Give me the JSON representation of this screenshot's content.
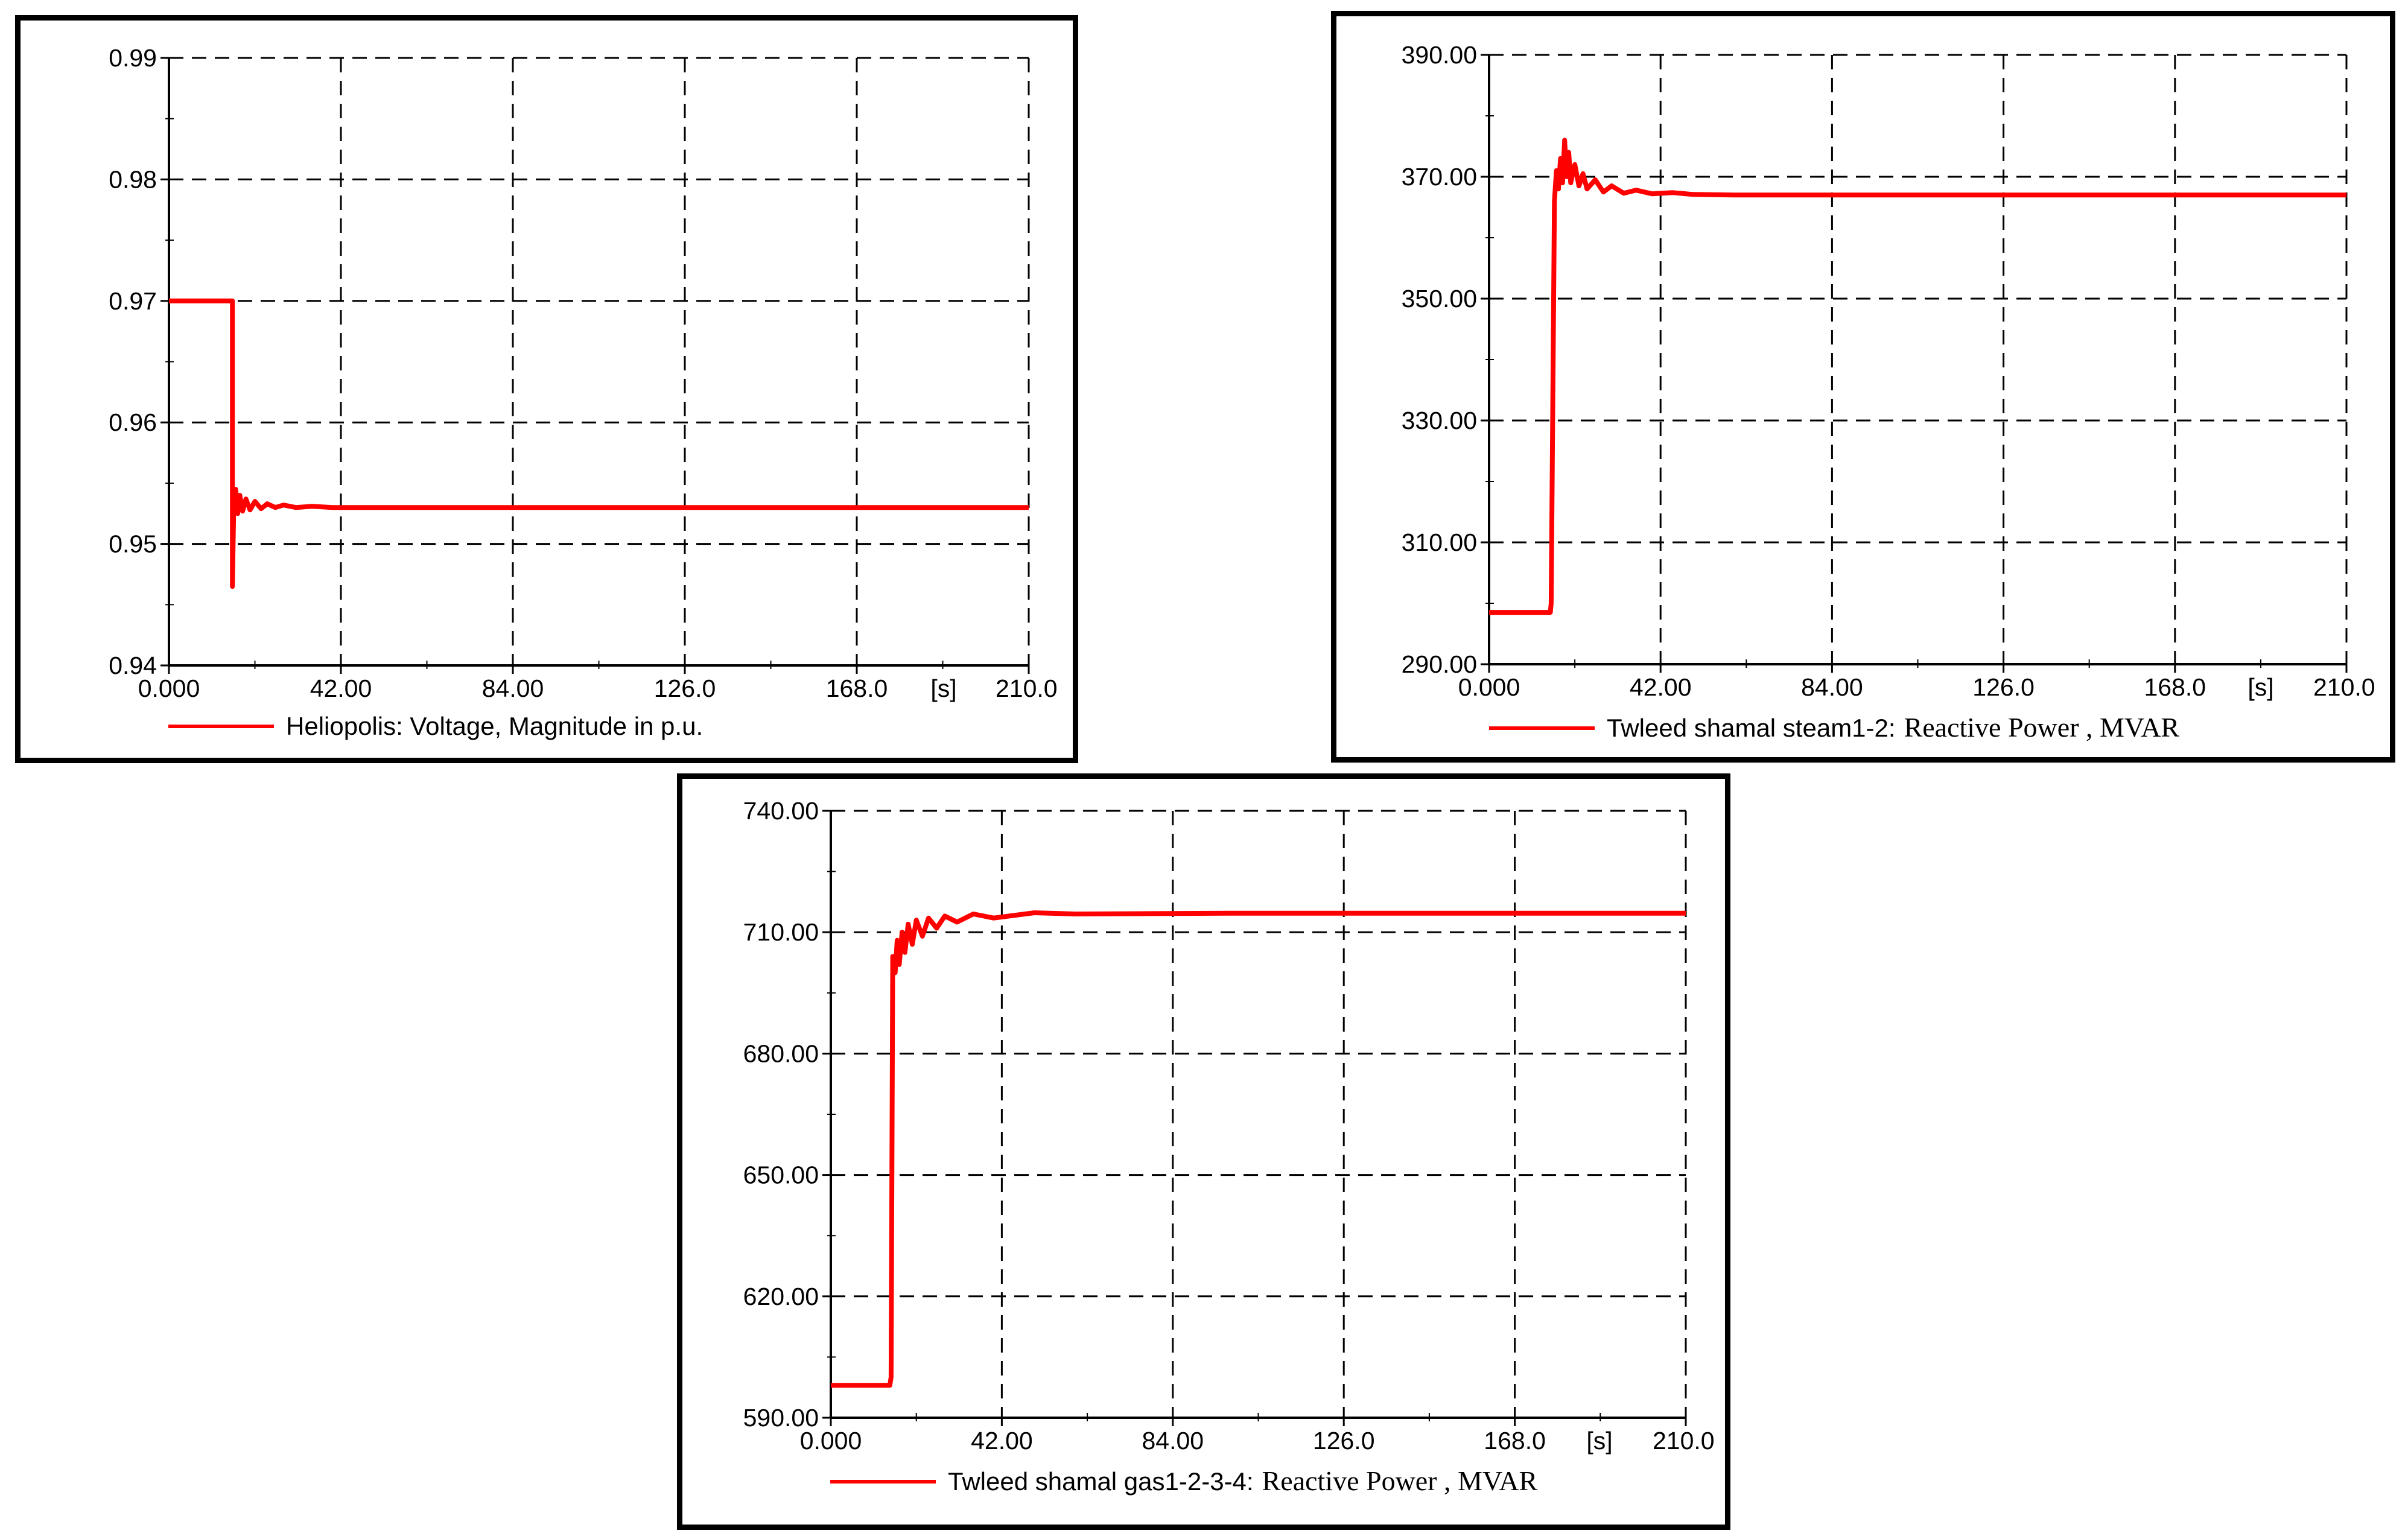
{
  "chart_data": [
    {
      "type": "line",
      "title": "",
      "xlabel": "",
      "ylabel": "",
      "x_unit_label": "[s]",
      "xlim": [
        0,
        210
      ],
      "ylim": [
        0.94,
        0.99
      ],
      "x_ticks": [
        "0.000",
        "42.00",
        "84.00",
        "126.0",
        "168.0",
        "210.0"
      ],
      "y_ticks": [
        "0.94",
        "0.95",
        "0.96",
        "0.97",
        "0.98",
        "0.99"
      ],
      "grid": true,
      "legend_position": "bottom",
      "legend": [
        {
          "sans": "Heliopolis: Voltage, Magnitude in p.u.",
          "serif": ""
        }
      ],
      "color": "#ff0000",
      "series": [
        {
          "name": "Heliopolis: Voltage, Magnitude in p.u.",
          "x": [
            0,
            15.5,
            15.5,
            15.8,
            16.3,
            16.8,
            17.3,
            18,
            18.8,
            19.8,
            21,
            22.5,
            24,
            26,
            28,
            31,
            35,
            40,
            60,
            100,
            150,
            210
          ],
          "y": [
            0.97,
            0.97,
            0.9465,
            0.9525,
            0.9545,
            0.9525,
            0.954,
            0.9527,
            0.9537,
            0.9528,
            0.9535,
            0.9529,
            0.9533,
            0.953,
            0.9532,
            0.953,
            0.9531,
            0.953,
            0.953,
            0.953,
            0.953,
            0.953
          ]
        }
      ]
    },
    {
      "type": "line",
      "title": "",
      "xlabel": "",
      "ylabel": "",
      "x_unit_label": "[s]",
      "xlim": [
        0,
        210
      ],
      "ylim": [
        290,
        390
      ],
      "x_ticks": [
        "0.000",
        "42.00",
        "84.00",
        "126.0",
        "168.0",
        "210.0"
      ],
      "y_ticks": [
        "290.00",
        "310.00",
        "330.00",
        "350.00",
        "370.00",
        "390.00"
      ],
      "grid": true,
      "legend_position": "bottom",
      "legend": [
        {
          "sans": "Twleed shamal steam1-2:",
          "serif": "Reactive Power   , MVAR"
        }
      ],
      "color": "#ff0000",
      "series": [
        {
          "name": "Twleed shamal steam1-2: Reactive Power , MVAR",
          "x": [
            0,
            15,
            15.2,
            16,
            16.5,
            17,
            17.5,
            18,
            18.5,
            19,
            19.5,
            20,
            21,
            22,
            23,
            24,
            26,
            28,
            30,
            33,
            36,
            40,
            45,
            50,
            60,
            80,
            120,
            210
          ],
          "y": [
            298.5,
            298.5,
            300,
            366,
            371,
            368,
            373,
            369,
            376,
            370,
            374,
            369,
            372,
            368.5,
            370.5,
            368,
            369.5,
            367.5,
            368.5,
            367.3,
            367.8,
            367.2,
            367.4,
            367.1,
            367,
            367,
            367,
            367
          ]
        }
      ]
    },
    {
      "type": "line",
      "title": "",
      "xlabel": "",
      "ylabel": "",
      "x_unit_label": "[s]",
      "xlim": [
        0,
        210
      ],
      "ylim": [
        590,
        740
      ],
      "x_ticks": [
        "0.000",
        "42.00",
        "84.00",
        "126.0",
        "168.0",
        "210.0"
      ],
      "y_ticks": [
        "590.00",
        "620.00",
        "650.00",
        "680.00",
        "710.00",
        "740.00"
      ],
      "grid": true,
      "legend_position": "bottom",
      "legend": [
        {
          "sans": "Twleed shamal gas1-2-3-4:",
          "serif": "Reactive Power   , MVAR"
        }
      ],
      "color": "#ff0000",
      "series": [
        {
          "name": "Twleed shamal gas1-2-3-4: Reactive Power , MVAR",
          "x": [
            0,
            14.5,
            14.8,
            15.2,
            15.8,
            16.3,
            16.8,
            17.5,
            18.2,
            19,
            20,
            21,
            22.5,
            24,
            26,
            28,
            31,
            35,
            40,
            50,
            60,
            100,
            150,
            210
          ],
          "y": [
            598,
            598,
            600,
            704,
            700,
            708,
            702,
            710,
            705,
            712,
            707,
            713,
            709,
            713.5,
            711,
            714,
            712.5,
            714.5,
            713.5,
            714.8,
            714.5,
            714.7,
            714.7,
            714.7
          ]
        }
      ]
    }
  ]
}
